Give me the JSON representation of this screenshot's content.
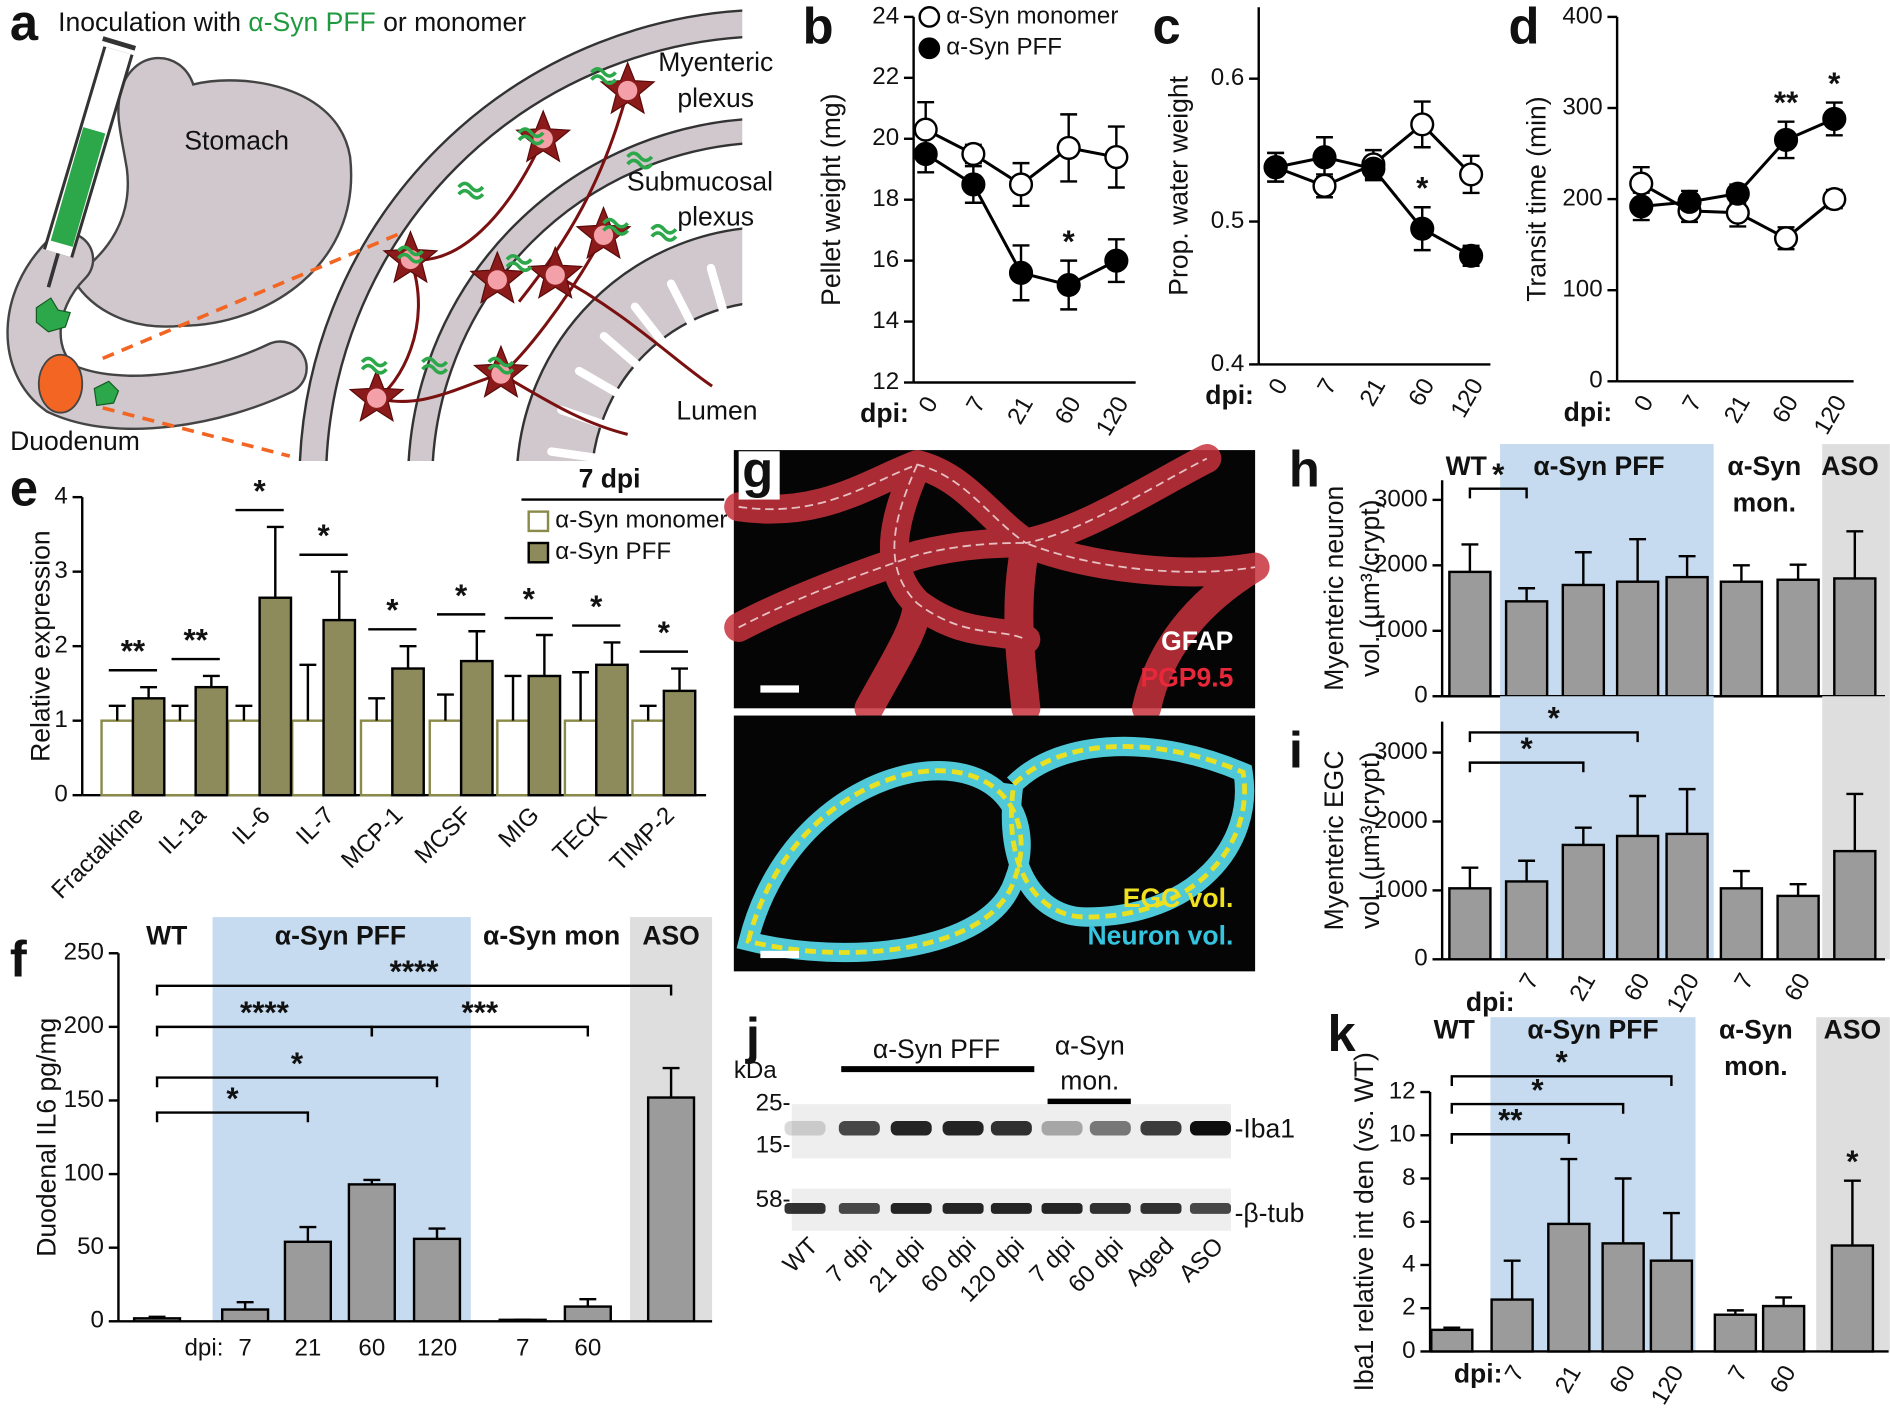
{
  "panels": {
    "a": {
      "letter": "a",
      "title": [
        "Inoculation with ",
        "α-Syn PFF",
        " or monomer"
      ],
      "stomach": "Stomach",
      "myenteric": [
        "Myenteric",
        "plexus"
      ],
      "submucosal": [
        "Submucosal",
        "plexus"
      ],
      "lumen": "Lumen",
      "duodenum": "Duodenum"
    },
    "g": {
      "letter": "g",
      "top_labels": [
        "GFAP",
        "PGP9.5"
      ],
      "bottom_labels": [
        "EGC vol.",
        "Neuron vol."
      ]
    },
    "j": {
      "letter": "j",
      "unit": "kDa",
      "markers": [
        "25-",
        "15-",
        "58-"
      ],
      "groups": [
        [
          "α-Syn PFF"
        ],
        [
          "α-Syn",
          "mon."
        ]
      ],
      "bands": [
        "-Iba1",
        "-β-tub"
      ],
      "lanes": [
        "WT",
        "7 dpi",
        "21 dpi",
        "60 dpi",
        "120 dpi",
        "7 dpi",
        "60 dpi",
        "Aged",
        "ASO"
      ]
    }
  },
  "chart_data": [
    {
      "panel": "b",
      "type": "line",
      "ylabel": "Pellet weight (mg)",
      "xlabel": "dpi:",
      "categories": [
        "0",
        "7",
        "21",
        "60",
        "120"
      ],
      "ylim": [
        12,
        24
      ],
      "yticks": [
        12,
        14,
        16,
        18,
        20,
        22,
        24
      ],
      "series": [
        {
          "name": "α-Syn monomer",
          "color": "#000000",
          "fill": "#ffffff",
          "values": [
            20.3,
            19.5,
            18.5,
            19.7,
            19.4
          ],
          "errors": [
            0.9,
            0.3,
            0.7,
            1.1,
            1.0
          ]
        },
        {
          "name": "α-Syn PFF",
          "color": "#000000",
          "fill": "#000000",
          "values": [
            19.5,
            18.5,
            15.6,
            15.2,
            16.0
          ],
          "errors": [
            0.6,
            0.6,
            0.9,
            0.8,
            0.7
          ]
        }
      ],
      "significance": [
        null,
        null,
        null,
        "*",
        null
      ]
    },
    {
      "panel": "c",
      "type": "line",
      "ylabel": "Prop. water weight",
      "xlabel": "dpi:",
      "categories": [
        "0",
        "7",
        "21",
        "60",
        "120"
      ],
      "ylim": [
        0.4,
        0.65
      ],
      "yticks": [
        0.4,
        0.5,
        0.6
      ],
      "series": [
        {
          "color": "#000000",
          "fill": "#ffffff",
          "values": [
            0.538,
            0.525,
            0.54,
            0.568,
            0.533
          ],
          "errors": [
            0.01,
            0.008,
            0.01,
            0.016,
            0.013
          ]
        },
        {
          "color": "#000000",
          "fill": "#000000",
          "values": [
            0.538,
            0.545,
            0.537,
            0.495,
            0.476
          ],
          "errors": [
            0.01,
            0.014,
            0.008,
            0.015,
            0.007
          ]
        }
      ],
      "significance": [
        null,
        null,
        null,
        "*",
        null
      ]
    },
    {
      "panel": "d",
      "type": "line",
      "ylabel": "Transit time (min)",
      "xlabel": "dpi:",
      "categories": [
        "0",
        "7",
        "21",
        "60",
        "120"
      ],
      "ylim": [
        0,
        400
      ],
      "yticks": [
        0,
        100,
        200,
        300,
        400
      ],
      "series": [
        {
          "color": "#000000",
          "fill": "#ffffff",
          "values": [
            217,
            187,
            185,
            157,
            200
          ],
          "errors": [
            18,
            12,
            15,
            12,
            10
          ]
        },
        {
          "color": "#000000",
          "fill": "#000000",
          "values": [
            192,
            197,
            206,
            265,
            288
          ],
          "errors": [
            15,
            12,
            10,
            20,
            18
          ]
        }
      ],
      "significance": [
        null,
        null,
        null,
        "**",
        "*"
      ]
    },
    {
      "panel": "e",
      "type": "grouped-bar",
      "ylabel": "Relative expression",
      "legend_title": "7 dpi",
      "categories": [
        "Fractalkine",
        "IL-1a",
        "IL-6",
        "IL-7",
        "MCP-1",
        "MCSF",
        "MIG",
        "TECK",
        "TIMP-2"
      ],
      "ylim": [
        0,
        4
      ],
      "yticks": [
        0,
        1,
        2,
        3,
        4
      ],
      "series": [
        {
          "name": "α-Syn monomer",
          "color": "#8a8a4a",
          "fill": "#ffffff",
          "values": [
            1,
            1,
            1,
            1,
            1,
            1,
            1,
            1,
            1
          ],
          "errors": [
            0.2,
            0.2,
            0.2,
            0.75,
            0.3,
            0.35,
            0.6,
            0.65,
            0.2
          ]
        },
        {
          "name": "α-Syn PFF",
          "color": "#8d8a5b",
          "values": [
            1.3,
            1.45,
            2.65,
            2.35,
            1.7,
            1.8,
            1.6,
            1.75,
            1.4
          ],
          "errors": [
            0.15,
            0.15,
            0.95,
            0.65,
            0.3,
            0.4,
            0.55,
            0.3,
            0.3
          ]
        }
      ],
      "significance": [
        "**",
        "**",
        "*",
        "*",
        "*",
        "*",
        "*",
        "*",
        "*"
      ]
    },
    {
      "panel": "f",
      "type": "bar",
      "ylabel": "Duodenal IL6 pg/mg",
      "xlabel": "dpi:",
      "groups": [
        [
          "WT"
        ],
        [
          "α-Syn PFF"
        ],
        [
          "α-Syn mon"
        ],
        [
          "ASO"
        ]
      ],
      "group_shades": [
        null,
        "#c6dbef",
        null,
        "#dedede"
      ],
      "categories": [
        null,
        "7",
        "21",
        "60",
        "120",
        "7",
        "60",
        null
      ],
      "color": "#9b9b9b",
      "values": [
        2,
        8,
        54,
        93,
        56,
        1,
        10,
        152
      ],
      "errors": [
        1,
        5,
        10,
        3,
        7,
        0,
        5,
        20
      ],
      "ylim": [
        0,
        250
      ],
      "yticks": [
        0,
        50,
        100,
        150,
        200,
        250
      ],
      "brackets": [
        "*",
        "*",
        "****",
        "***",
        "****"
      ]
    },
    {
      "panel": "h",
      "type": "bar",
      "ylabel": [
        "Myenteric neuron",
        "vol. (µm³/crypt)"
      ],
      "groups": [
        [
          "WT"
        ],
        [
          "α-Syn PFF"
        ],
        [
          "α-Syn",
          "mon."
        ],
        [
          "ASO"
        ]
      ],
      "group_shades": [
        null,
        "#c6dbef",
        null,
        "#dedede"
      ],
      "color": "#9b9b9b",
      "values": [
        1900,
        1450,
        1700,
        1750,
        1820,
        1750,
        1780,
        1800
      ],
      "errors": [
        420,
        200,
        500,
        650,
        320,
        250,
        230,
        720
      ],
      "ylim": [
        0,
        3300
      ],
      "yticks": [
        0,
        1000,
        2000,
        3000
      ],
      "brackets": [
        "*"
      ]
    },
    {
      "panel": "i",
      "type": "bar",
      "ylabel": [
        "Myenteric EGC",
        "vol. (µm³/crypt)"
      ],
      "xlabel": "dpi:",
      "group_shades": [
        null,
        "#c6dbef",
        null,
        "#dedede"
      ],
      "categories": [
        null,
        "7",
        "21",
        "60",
        "120",
        "7",
        "60",
        null
      ],
      "color": "#9b9b9b",
      "values": [
        1030,
        1130,
        1660,
        1790,
        1820,
        1030,
        920,
        1570
      ],
      "errors": [
        300,
        300,
        250,
        580,
        650,
        250,
        170,
        830
      ],
      "ylim": [
        0,
        3450
      ],
      "yticks": [
        0,
        1000,
        2000,
        3000
      ],
      "brackets": [
        "*",
        "*"
      ]
    },
    {
      "panel": "k",
      "type": "bar",
      "ylabel": "Iba1 relative int den (vs. WT)",
      "xlabel": "dpi:",
      "groups": [
        [
          "WT"
        ],
        [
          "α-Syn PFF"
        ],
        [
          "α-Syn",
          "mon."
        ],
        [
          "ASO"
        ]
      ],
      "group_shades": [
        null,
        "#c6dbef",
        null,
        "#dedede"
      ],
      "categories": [
        null,
        "7",
        "21",
        "60",
        "120",
        "7",
        "60",
        null
      ],
      "color": "#9b9b9b",
      "values": [
        1.0,
        2.4,
        5.9,
        5.0,
        4.2,
        1.7,
        2.1,
        4.9
      ],
      "errors": [
        0.1,
        1.8,
        3.0,
        3.0,
        2.2,
        0.2,
        0.4,
        3.0
      ],
      "ylim": [
        0,
        12
      ],
      "yticks": [
        0,
        2,
        4,
        6,
        8,
        10,
        12
      ],
      "brackets": [
        "**",
        "*",
        "*"
      ],
      "significance": [
        null,
        null,
        null,
        null,
        null,
        null,
        null,
        "*"
      ]
    }
  ]
}
